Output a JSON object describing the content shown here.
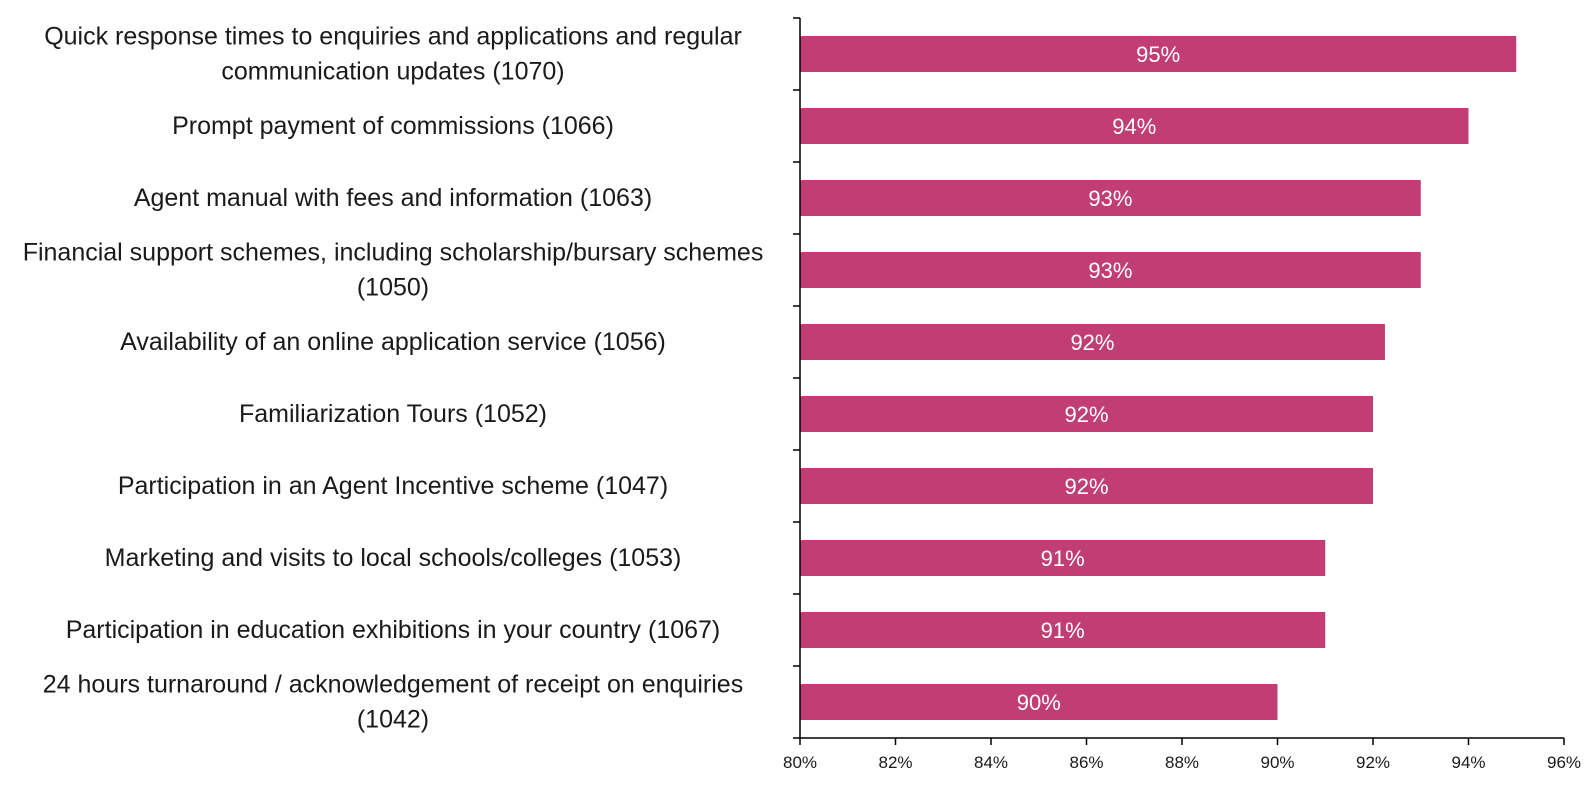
{
  "chart_data": {
    "type": "bar",
    "orientation": "horizontal",
    "categories": [
      [
        "Quick response times to enquiries and applications and regular",
        "communication updates (1070)"
      ],
      [
        "Prompt payment of commissions (1066)"
      ],
      [
        "Agent manual with fees and information (1063)"
      ],
      [
        "Financial support schemes, including scholarship/bursary schemes",
        "(1050)"
      ],
      [
        "Availability of an online application service (1056)"
      ],
      [
        "Familiarization Tours (1052)"
      ],
      [
        "Participation in an Agent Incentive scheme (1047)"
      ],
      [
        "Marketing and visits to local schools/colleges (1053)"
      ],
      [
        "Participation in education exhibitions in your country (1067)"
      ],
      [
        "24 hours turnaround / acknowledgement of receipt on enquiries",
        "(1042)"
      ]
    ],
    "values": [
      95.0,
      94.0,
      93.0,
      93.0,
      92.25,
      92.0,
      92.0,
      91.0,
      91.0,
      90.0
    ],
    "data_labels": [
      "95%",
      "94%",
      "93%",
      "93%",
      "92%",
      "92%",
      "92%",
      "91%",
      "91%",
      "90%"
    ],
    "xlim": [
      80,
      96
    ],
    "x_ticks": [
      "80%",
      "82%",
      "84%",
      "86%",
      "88%",
      "90%",
      "92%",
      "94%",
      "96%"
    ],
    "bar_color": "#c13e75",
    "title": "",
    "xlabel": "",
    "ylabel": "",
    "grid": false,
    "legend": "none"
  }
}
